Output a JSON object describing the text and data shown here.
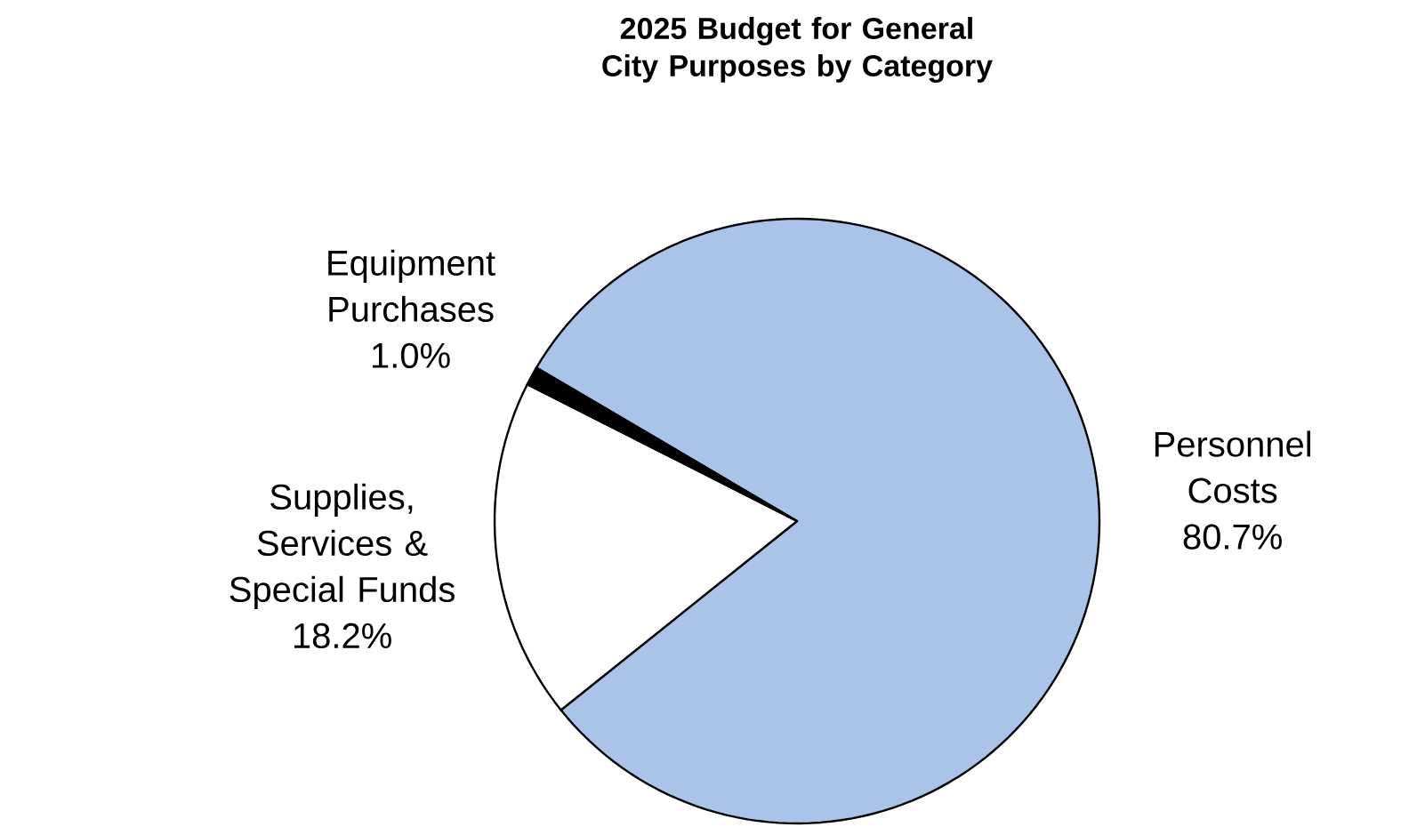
{
  "chart_data": {
    "type": "pie",
    "title": "2025 Budget for General City Purposes by Category",
    "categories": [
      "Personnel Costs",
      "Supplies, Services & Special Funds",
      "Equipment Purchases"
    ],
    "values": [
      80.7,
      18.2,
      1.0
    ],
    "colors": [
      "#a9c4e8",
      "#ffffff",
      "#000000"
    ],
    "value_labels": [
      "80.7%",
      "18.2%",
      "1.0%"
    ]
  }
}
